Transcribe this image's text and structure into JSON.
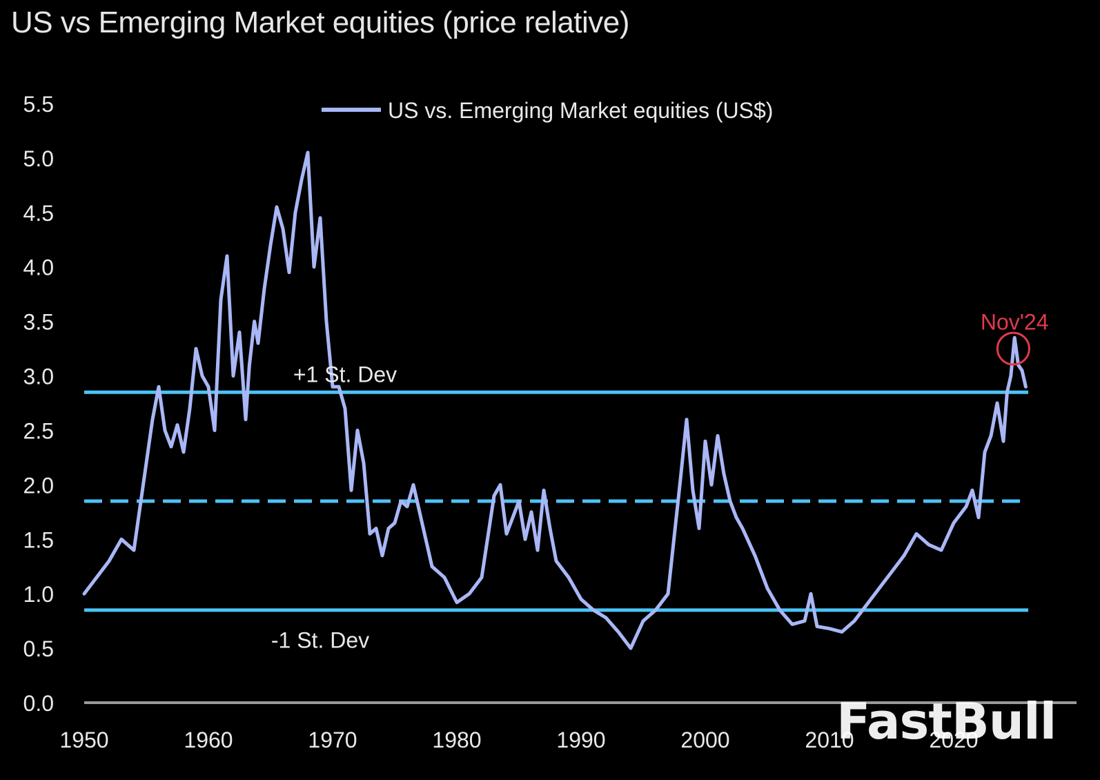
{
  "chart_data": {
    "type": "line",
    "title": "US vs Emerging Market equities (price relative)",
    "xlabel": "",
    "ylabel": "",
    "xlim": [
      1950,
      2026
    ],
    "ylim": [
      0,
      5.5
    ],
    "x_ticks": [
      "1950",
      "1960",
      "1970",
      "1980",
      "1990",
      "2000",
      "2010",
      "2020"
    ],
    "y_ticks": [
      "0.0",
      "0.5",
      "1.0",
      "1.5",
      "2.0",
      "2.5",
      "3.0",
      "3.5",
      "4.0",
      "4.5",
      "5.0",
      "5.5"
    ],
    "grid": false,
    "legend": {
      "position": "top-center"
    },
    "series": [
      {
        "name": "US vs. Emerging Market equities (US$)",
        "color": "#a9b7f6",
        "x": [
          1950,
          1951,
          1952,
          1953,
          1954,
          1955,
          1955.5,
          1956,
          1956.5,
          1957,
          1957.5,
          1958,
          1958.5,
          1959,
          1959.5,
          1960,
          1960.5,
          1961,
          1961.5,
          1962,
          1962.5,
          1963,
          1963.3,
          1963.7,
          1964,
          1964.5,
          1965,
          1965.5,
          1966,
          1966.5,
          1967,
          1967.5,
          1968,
          1968.5,
          1969,
          1969.5,
          1970,
          1970.5,
          1971,
          1971.5,
          1972,
          1972.5,
          1973,
          1973.5,
          1974,
          1974.5,
          1975,
          1975.5,
          1976,
          1976.5,
          1977,
          1978,
          1979,
          1980,
          1981,
          1982,
          1983,
          1983.5,
          1984,
          1984.5,
          1985,
          1985.5,
          1986,
          1986.5,
          1987,
          1987.5,
          1988,
          1989,
          1990,
          1991,
          1992,
          1993,
          1994,
          1995,
          1996,
          1997,
          1998,
          1998.5,
          1999,
          1999.5,
          2000,
          2000.5,
          2001,
          2001.5,
          2002,
          2002.5,
          2003,
          2004,
          2005,
          2006,
          2007,
          2008,
          2008.5,
          2009,
          2010,
          2011,
          2012,
          2013,
          2014,
          2015,
          2016,
          2017,
          2018,
          2019,
          2020,
          2021,
          2021.5,
          2022,
          2022.5,
          2023,
          2023.5,
          2024,
          2024.3,
          2024.6,
          2024.9,
          2025.2,
          2025.5,
          2025.8
        ],
        "y": [
          1.0,
          1.15,
          1.3,
          1.5,
          1.4,
          2.2,
          2.6,
          2.9,
          2.5,
          2.35,
          2.55,
          2.3,
          2.7,
          3.25,
          3.0,
          2.9,
          2.5,
          3.7,
          4.1,
          3.0,
          3.4,
          2.6,
          3.1,
          3.5,
          3.3,
          3.8,
          4.2,
          4.55,
          4.35,
          3.95,
          4.5,
          4.8,
          5.05,
          4.0,
          4.45,
          3.5,
          2.9,
          2.9,
          2.7,
          1.95,
          2.5,
          2.2,
          1.55,
          1.6,
          1.35,
          1.6,
          1.65,
          1.85,
          1.8,
          2.0,
          1.75,
          1.25,
          1.15,
          0.92,
          1.0,
          1.15,
          1.9,
          2.0,
          1.55,
          1.7,
          1.85,
          1.5,
          1.75,
          1.4,
          1.95,
          1.6,
          1.3,
          1.15,
          0.95,
          0.85,
          0.78,
          0.65,
          0.5,
          0.75,
          0.85,
          1.0,
          2.05,
          2.6,
          1.95,
          1.6,
          2.4,
          2.0,
          2.45,
          2.1,
          1.85,
          1.7,
          1.6,
          1.35,
          1.05,
          0.85,
          0.72,
          0.75,
          1.0,
          0.7,
          0.68,
          0.65,
          0.75,
          0.9,
          1.05,
          1.2,
          1.35,
          1.55,
          1.45,
          1.4,
          1.65,
          1.8,
          1.95,
          1.7,
          2.3,
          2.45,
          2.75,
          2.4,
          2.85,
          3.0,
          3.35,
          3.1,
          3.05,
          2.9
        ]
      }
    ],
    "reference_lines": [
      {
        "name": "+1 St. Dev",
        "y": 2.85,
        "style": "solid",
        "color": "#4cc3f7"
      },
      {
        "name": "mean",
        "y": 1.85,
        "style": "dashed",
        "color": "#4cc3f7"
      },
      {
        "name": "-1 St. Dev",
        "y": 0.85,
        "style": "solid",
        "color": "#4cc3f7"
      }
    ],
    "annotations": [
      {
        "text": "+1 St. Dev",
        "x": 1971,
        "y": 3.02
      },
      {
        "text": "-1 St. Dev",
        "x": 1969,
        "y": 0.58
      },
      {
        "text": "Nov'24",
        "x": 2024.9,
        "y": 3.5,
        "color": "#e03a4a",
        "circle_at": {
          "x": 2024.8,
          "y": 3.25
        }
      }
    ],
    "baseline_color": "#9a9a9a"
  },
  "watermark": "FastBull"
}
